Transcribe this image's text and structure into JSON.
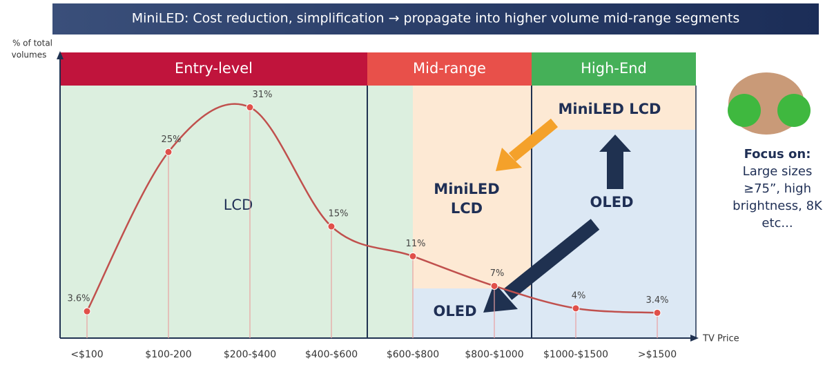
{
  "chart_data": {
    "type": "line",
    "title": "MiniLED: Cost reduction, simplification → propagate into higher volume mid-range segments",
    "y_label": [
      "% of total",
      "volumes"
    ],
    "x_label": "TV Price",
    "categories": [
      "<$100",
      "$100-200",
      "$200-$400",
      "$400-$600",
      "$600-$800",
      "$800-$1000",
      "$1000-$1500",
      ">$1500"
    ],
    "values": [
      3.6,
      25,
      31,
      15,
      11,
      7,
      4,
      3.4
    ],
    "value_labels": [
      "3.6%",
      "25%",
      "31%",
      "15%",
      "11%",
      "7%",
      "4%",
      "3.4%"
    ],
    "color": "#c0504d",
    "ylim": [
      0,
      38
    ],
    "segments": [
      {
        "name": "Entry-level",
        "color": "#c0143c"
      },
      {
        "name": "Mid-range",
        "color": "#e8504a"
      },
      {
        "name": "High-End",
        "color": "#45b058"
      }
    ],
    "regions": {
      "lcd": "LCD",
      "mid_miniled": [
        "MiniLED",
        "LCD"
      ],
      "mid_oled": "OLED",
      "high_miniled": "MiniLED LCD",
      "high_oled": "OLED"
    },
    "focus": {
      "title": "Focus on:",
      "lines": [
        "Large sizes",
        "≥75”, high",
        "brightness, 8K",
        "etc..."
      ]
    }
  }
}
